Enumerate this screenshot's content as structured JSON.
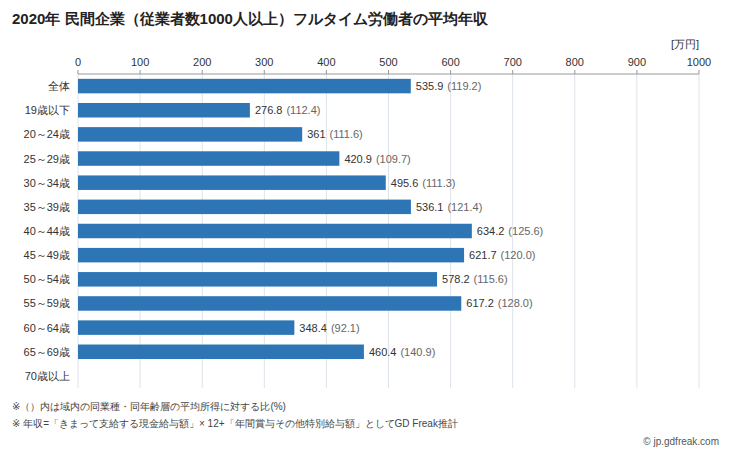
{
  "chart_data": {
    "type": "bar",
    "orientation": "horizontal",
    "title": "2020年 民間企業（従業者数1000人以上）フルタイム労働者の平均年収",
    "xlabel": "[万円]",
    "categories": [
      "全体",
      "19歳以下",
      "20～24歳",
      "25～29歳",
      "30～34歳",
      "35～39歳",
      "40～44歳",
      "45～49歳",
      "50～54歳",
      "55～59歳",
      "60～64歳",
      "65～69歳",
      "70歳以上"
    ],
    "values": [
      535.9,
      276.8,
      361.0,
      420.9,
      495.6,
      536.1,
      634.2,
      621.7,
      578.2,
      617.2,
      348.4,
      460.4,
      0
    ],
    "ratio_labels": [
      "(119.2)",
      "(112.4)",
      "(111.6)",
      "(109.7)",
      "(111.3)",
      "(121.4)",
      "(125.6)",
      "(120.0)",
      "(115.6)",
      "(128.0)",
      "(92.1)",
      "(140.9)",
      null
    ],
    "color": "#2E75B6",
    "xlim": [
      0,
      1000
    ],
    "xticks": [
      0,
      100,
      200,
      300,
      400,
      500,
      600,
      700,
      800,
      900,
      1000
    ],
    "grid": true,
    "data_labels": true,
    "annotations": [
      "※（）内は域内の同業種・同年齢層の平均所得に対する比(%)",
      "※ 年収=「きまって支給する現金給与額」× 12+「年間賞与その他特別給与額」としてGD Freak推計",
      "© jp.gdfreak.com"
    ]
  }
}
